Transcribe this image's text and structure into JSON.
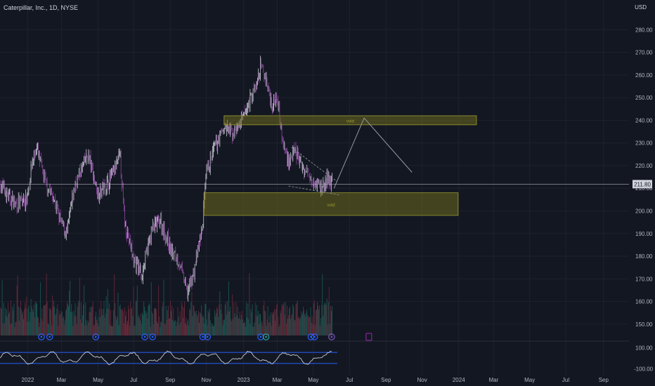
{
  "header": {
    "symbol_title": "Caterpillar, Inc., 1D, NYSE",
    "currency": "USD"
  },
  "colors": {
    "background": "#131722",
    "grid": "#1e222d",
    "candle_down": "#9c4fb0",
    "candle_up": "#e0e3eb",
    "volume_up": "#1b5e57",
    "volume_down": "#6e2a3b",
    "zone_fill": "#6b6a1e",
    "zone_border": "#9e9a33",
    "projection": "#9598a1",
    "oscillator_line": "#c8cad2",
    "oscillator_fill": "#7a6e9a",
    "oscillator_bounds": "#2962ff",
    "price_line": "#b2b5be",
    "last_price_box": "#d1d4dc"
  },
  "chart_data": {
    "type": "candlestick",
    "title": "Caterpillar, Inc., 1D, NYSE",
    "y_axis": {
      "unit": "USD",
      "range": [
        145,
        290
      ],
      "ticks": [
        "150.00",
        "160.00",
        "170.00",
        "180.00",
        "190.00",
        "200.00",
        "210.00",
        "220.00",
        "230.00",
        "240.00",
        "250.00",
        "260.00",
        "270.00",
        "280.00"
      ]
    },
    "x_axis": {
      "range": [
        "2021-11-17",
        "2024-10-16"
      ],
      "ticks": [
        {
          "label": "2022",
          "date": "2022-01-03"
        },
        {
          "label": "Mar",
          "date": "2022-03-01"
        },
        {
          "label": "May",
          "date": "2022-05-02"
        },
        {
          "label": "Jul",
          "date": "2022-07-01"
        },
        {
          "label": "Sep",
          "date": "2022-09-01"
        },
        {
          "label": "Nov",
          "date": "2022-11-01"
        },
        {
          "label": "2023",
          "date": "2023-01-03"
        },
        {
          "label": "Mar",
          "date": "2023-03-01"
        },
        {
          "label": "May",
          "date": "2023-05-01"
        },
        {
          "label": "Jul",
          "date": "2023-07-01"
        },
        {
          "label": "Sep",
          "date": "2023-09-01"
        },
        {
          "label": "Nov",
          "date": "2023-11-01"
        },
        {
          "label": "2024",
          "date": "2024-01-02"
        },
        {
          "label": "Mar",
          "date": "2024-03-01"
        },
        {
          "label": "May",
          "date": "2024-05-01"
        },
        {
          "label": "Jul",
          "date": "2024-07-01"
        },
        {
          "label": "Sep",
          "date": "2024-09-03"
        }
      ]
    },
    "last_price": {
      "label": "211.80",
      "value": 211.8
    },
    "price_path": [
      {
        "date": "2021-11-17",
        "close": 212
      },
      {
        "date": "2021-12-01",
        "close": 206
      },
      {
        "date": "2021-12-15",
        "close": 203
      },
      {
        "date": "2022-01-01",
        "close": 205
      },
      {
        "date": "2022-01-10",
        "close": 221
      },
      {
        "date": "2022-01-18",
        "close": 228
      },
      {
        "date": "2022-02-01",
        "close": 213
      },
      {
        "date": "2022-02-15",
        "close": 206
      },
      {
        "date": "2022-03-01",
        "close": 194
      },
      {
        "date": "2022-03-10",
        "close": 190
      },
      {
        "date": "2022-03-24",
        "close": 212
      },
      {
        "date": "2022-04-05",
        "close": 219
      },
      {
        "date": "2022-04-15",
        "close": 225
      },
      {
        "date": "2022-05-01",
        "close": 208
      },
      {
        "date": "2022-05-15",
        "close": 211
      },
      {
        "date": "2022-06-01",
        "close": 219
      },
      {
        "date": "2022-06-08",
        "close": 225
      },
      {
        "date": "2022-06-15",
        "close": 197
      },
      {
        "date": "2022-07-01",
        "close": 178
      },
      {
        "date": "2022-07-15",
        "close": 172
      },
      {
        "date": "2022-08-01",
        "close": 192
      },
      {
        "date": "2022-08-15",
        "close": 196
      },
      {
        "date": "2022-09-01",
        "close": 183
      },
      {
        "date": "2022-09-15",
        "close": 178
      },
      {
        "date": "2022-09-30",
        "close": 164
      },
      {
        "date": "2022-10-10",
        "close": 172
      },
      {
        "date": "2022-10-25",
        "close": 192
      },
      {
        "date": "2022-11-01",
        "close": 216
      },
      {
        "date": "2022-11-15",
        "close": 228
      },
      {
        "date": "2022-12-01",
        "close": 237
      },
      {
        "date": "2022-12-15",
        "close": 234
      },
      {
        "date": "2023-01-01",
        "close": 240
      },
      {
        "date": "2023-01-15",
        "close": 250
      },
      {
        "date": "2023-01-25",
        "close": 255
      },
      {
        "date": "2023-02-01",
        "close": 264
      },
      {
        "date": "2023-02-10",
        "close": 258
      },
      {
        "date": "2023-02-20",
        "close": 246
      },
      {
        "date": "2023-03-01",
        "close": 252
      },
      {
        "date": "2023-03-10",
        "close": 230
      },
      {
        "date": "2023-03-20",
        "close": 222
      },
      {
        "date": "2023-04-01",
        "close": 226
      },
      {
        "date": "2023-04-15",
        "close": 218
      },
      {
        "date": "2023-04-25",
        "close": 216
      },
      {
        "date": "2023-05-05",
        "close": 213
      },
      {
        "date": "2023-05-15",
        "close": 210
      },
      {
        "date": "2023-05-25",
        "close": 214
      },
      {
        "date": "2023-06-02",
        "close": 212
      }
    ],
    "zones": [
      {
        "from": "2022-12-01",
        "to": "2024-02-01",
        "top": 242,
        "bottom": 238,
        "label": "void"
      },
      {
        "from": "2022-10-28",
        "to": "2024-01-01",
        "top": 208,
        "bottom": 198,
        "label": "void"
      }
    ],
    "trendlines": [
      {
        "points": [
          {
            "date": "2023-03-20",
            "value": 211
          },
          {
            "date": "2023-06-15",
            "value": 207
          }
        ]
      },
      {
        "points": [
          {
            "date": "2023-03-25",
            "value": 228
          },
          {
            "date": "2023-06-10",
            "value": 213
          }
        ]
      }
    ],
    "projection_path": [
      {
        "date": "2023-06-05",
        "value": 210
      },
      {
        "date": "2023-07-26",
        "value": 241
      },
      {
        "date": "2023-10-15",
        "value": 217
      }
    ],
    "event_markers": [
      {
        "date": "2022-01-26",
        "type": "earnings"
      },
      {
        "date": "2022-02-09",
        "type": "earnings"
      },
      {
        "date": "2022-04-28",
        "type": "earnings"
      },
      {
        "date": "2022-07-20",
        "type": "earnings"
      },
      {
        "date": "2022-08-02",
        "type": "earnings"
      },
      {
        "date": "2022-10-26",
        "type": "earnings"
      },
      {
        "date": "2022-11-03",
        "type": "earnings"
      },
      {
        "date": "2023-02-01",
        "type": "earnings"
      },
      {
        "date": "2023-02-10",
        "type": "dividend"
      },
      {
        "date": "2023-04-27",
        "type": "earnings"
      },
      {
        "date": "2023-05-03",
        "type": "earnings"
      },
      {
        "date": "2023-06-01",
        "type": "split"
      },
      {
        "date": "2023-08-03",
        "type": "earnings-upcoming"
      }
    ],
    "oscillator": {
      "ticks": [
        "100.00",
        "-100.00"
      ],
      "range": [
        -140,
        140
      ],
      "upper_band": 55,
      "lower_band": -55
    }
  }
}
